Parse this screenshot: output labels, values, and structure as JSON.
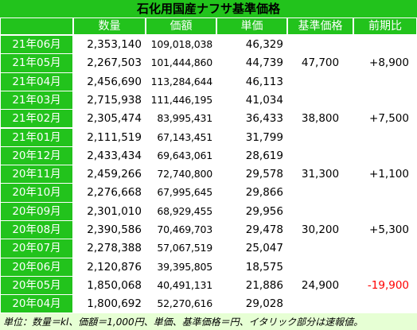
{
  "title": "石化用国産ナフサ基準価格",
  "headers": {
    "col0": "",
    "quantity": "数量",
    "value": "価額",
    "unit_price": "単価",
    "base_price": "基準価格",
    "change": "前期比"
  },
  "rows": [
    {
      "month": "21年06月",
      "quantity": "2,353,140",
      "value": "109,018,038",
      "unit_price": "46,329"
    },
    {
      "month": "21年05月",
      "quantity": "2,267,503",
      "value": "101,444,860",
      "unit_price": "44,739"
    },
    {
      "month": "21年04月",
      "quantity": "2,456,690",
      "value": "113,284,644",
      "unit_price": "46,113"
    },
    {
      "month": "21年03月",
      "quantity": "2,715,938",
      "value": "111,446,195",
      "unit_price": "41,034"
    },
    {
      "month": "21年02月",
      "quantity": "2,305,474",
      "value": "83,995,431",
      "unit_price": "36,433"
    },
    {
      "month": "21年01月",
      "quantity": "2,111,519",
      "value": "67,143,451",
      "unit_price": "31,799"
    },
    {
      "month": "20年12月",
      "quantity": "2,433,434",
      "value": "69,643,061",
      "unit_price": "28,619"
    },
    {
      "month": "20年11月",
      "quantity": "2,459,266",
      "value": "72,740,800",
      "unit_price": "29,578"
    },
    {
      "month": "20年10月",
      "quantity": "2,276,668",
      "value": "67,995,645",
      "unit_price": "29,866"
    },
    {
      "month": "20年09月",
      "quantity": "2,301,010",
      "value": "68,929,455",
      "unit_price": "29,956"
    },
    {
      "month": "20年08月",
      "quantity": "2,390,586",
      "value": "70,469,703",
      "unit_price": "29,478"
    },
    {
      "month": "20年07月",
      "quantity": "2,278,388",
      "value": "57,067,519",
      "unit_price": "25,047"
    },
    {
      "month": "20年06月",
      "quantity": "2,120,876",
      "value": "39,395,805",
      "unit_price": "18,575"
    },
    {
      "month": "20年05月",
      "quantity": "1,850,068",
      "value": "40,491,131",
      "unit_price": "21,886"
    },
    {
      "month": "20年04月",
      "quantity": "1,800,692",
      "value": "52,270,616",
      "unit_price": "29,028"
    }
  ],
  "quarters": [
    {
      "base_price": "47,700",
      "change": "+8,900",
      "change_negative": false
    },
    {
      "base_price": "38,800",
      "change": "+7,500",
      "change_negative": false
    },
    {
      "base_price": "31,300",
      "change": "+1,100",
      "change_negative": false
    },
    {
      "base_price": "30,200",
      "change": "+5,300",
      "change_negative": false
    },
    {
      "base_price": "24,900",
      "change": "-19,900",
      "change_negative": true
    }
  ],
  "footnote": "単位：数量＝kl、価額＝1,000円、単価、基準価格＝円、イタリック部分は速報値。",
  "colors": {
    "header_green": "#22c31c",
    "background": "#e6ffd4",
    "negative": "#ff0000"
  }
}
